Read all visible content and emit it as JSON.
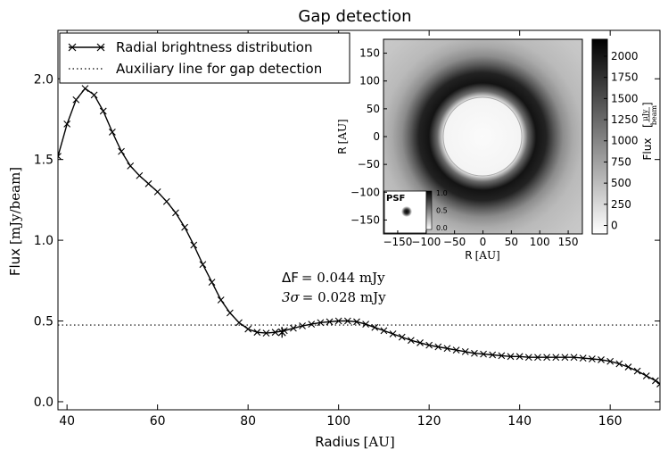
{
  "chart_data": {
    "type": "line",
    "title": "Gap detection",
    "xlabel": "Radius",
    "xlabel_unit": "[AU]",
    "ylabel": "Flux",
    "ylabel_unit": "[mJy/beam]",
    "xlim": [
      38,
      171
    ],
    "ylim": [
      -0.05,
      2.3
    ],
    "xticks": [
      40,
      60,
      80,
      100,
      120,
      140,
      160
    ],
    "yticks": [
      0.0,
      0.5,
      1.0,
      1.5,
      2.0
    ],
    "xtick_labels": [
      "40",
      "60",
      "80",
      "100",
      "120",
      "140",
      "160"
    ],
    "ytick_labels": [
      "0.0",
      "0.5",
      "1.0",
      "1.5",
      "2.0"
    ],
    "legend": {
      "position": "top-left",
      "entries": [
        "Radial brightness distribution",
        "Auxiliary line for gap detection"
      ]
    },
    "series": [
      {
        "name": "Radial brightness distribution",
        "style": "solid-x-markers",
        "x": [
          38,
          40,
          42,
          44,
          46,
          48,
          50,
          52,
          54,
          56,
          58,
          60,
          62,
          64,
          66,
          68,
          70,
          72,
          74,
          76,
          78,
          80,
          82,
          84,
          86,
          88,
          90,
          92,
          94,
          96,
          98,
          100,
          102,
          104,
          106,
          108,
          110,
          112,
          114,
          116,
          118,
          120,
          122,
          124,
          126,
          128,
          130,
          132,
          134,
          136,
          138,
          140,
          142,
          144,
          146,
          148,
          150,
          152,
          154,
          156,
          158,
          160,
          162,
          164,
          166,
          168,
          170,
          171
        ],
        "y": [
          1.52,
          1.72,
          1.87,
          1.94,
          1.9,
          1.8,
          1.67,
          1.55,
          1.46,
          1.4,
          1.35,
          1.3,
          1.24,
          1.17,
          1.08,
          0.97,
          0.85,
          0.74,
          0.63,
          0.55,
          0.49,
          0.45,
          0.43,
          0.425,
          0.43,
          0.44,
          0.455,
          0.47,
          0.48,
          0.49,
          0.495,
          0.5,
          0.5,
          0.495,
          0.48,
          0.46,
          0.44,
          0.42,
          0.4,
          0.38,
          0.365,
          0.35,
          0.34,
          0.33,
          0.32,
          0.31,
          0.3,
          0.295,
          0.29,
          0.285,
          0.28,
          0.28,
          0.275,
          0.275,
          0.275,
          0.275,
          0.275,
          0.275,
          0.27,
          0.265,
          0.26,
          0.25,
          0.235,
          0.215,
          0.19,
          0.16,
          0.13,
          0.11
        ]
      },
      {
        "name": "Auxiliary line for gap detection",
        "style": "dotted",
        "y_constant": 0.475
      }
    ],
    "gap_marker": {
      "x": 87.5,
      "y": 0.43
    },
    "annotations": [
      {
        "label": "ΔF",
        "value": "= 0.044 mJy"
      },
      {
        "label": "3σ",
        "value": "= 0.028 mJy"
      }
    ],
    "inset": {
      "type": "image",
      "description_label": "PSF",
      "xlabel": "R",
      "xlabel_unit": "[AU]",
      "ylabel": "R",
      "ylabel_unit": "[AU]",
      "xticks": [
        -150,
        -100,
        -50,
        0,
        50,
        100,
        150
      ],
      "xtick_labels": [
        "−150",
        "−100",
        "−50",
        "0",
        "50",
        "100",
        "150"
      ],
      "yticks": [
        150,
        100,
        50,
        0,
        -50,
        -100,
        -150
      ],
      "ytick_labels": [
        "150",
        "100",
        "50",
        "0",
        "−50",
        "−100",
        "−150"
      ],
      "lim": [
        -175,
        175
      ],
      "colorbar": {
        "label": "Flux",
        "unit_num": "μJy",
        "unit_den": "beam",
        "range": [
          -100,
          2200
        ],
        "ticks": [
          0,
          250,
          500,
          750,
          1000,
          1250,
          1500,
          1750,
          2000
        ],
        "tick_labels": [
          "0",
          "250",
          "500",
          "750",
          "1000",
          "1250",
          "1500",
          "1750",
          "2000"
        ]
      },
      "psf_colorbar": {
        "ticks": [
          1.0,
          0.5,
          0.0
        ],
        "tick_labels": [
          "1.0",
          "0.5",
          "0.0"
        ]
      }
    }
  }
}
